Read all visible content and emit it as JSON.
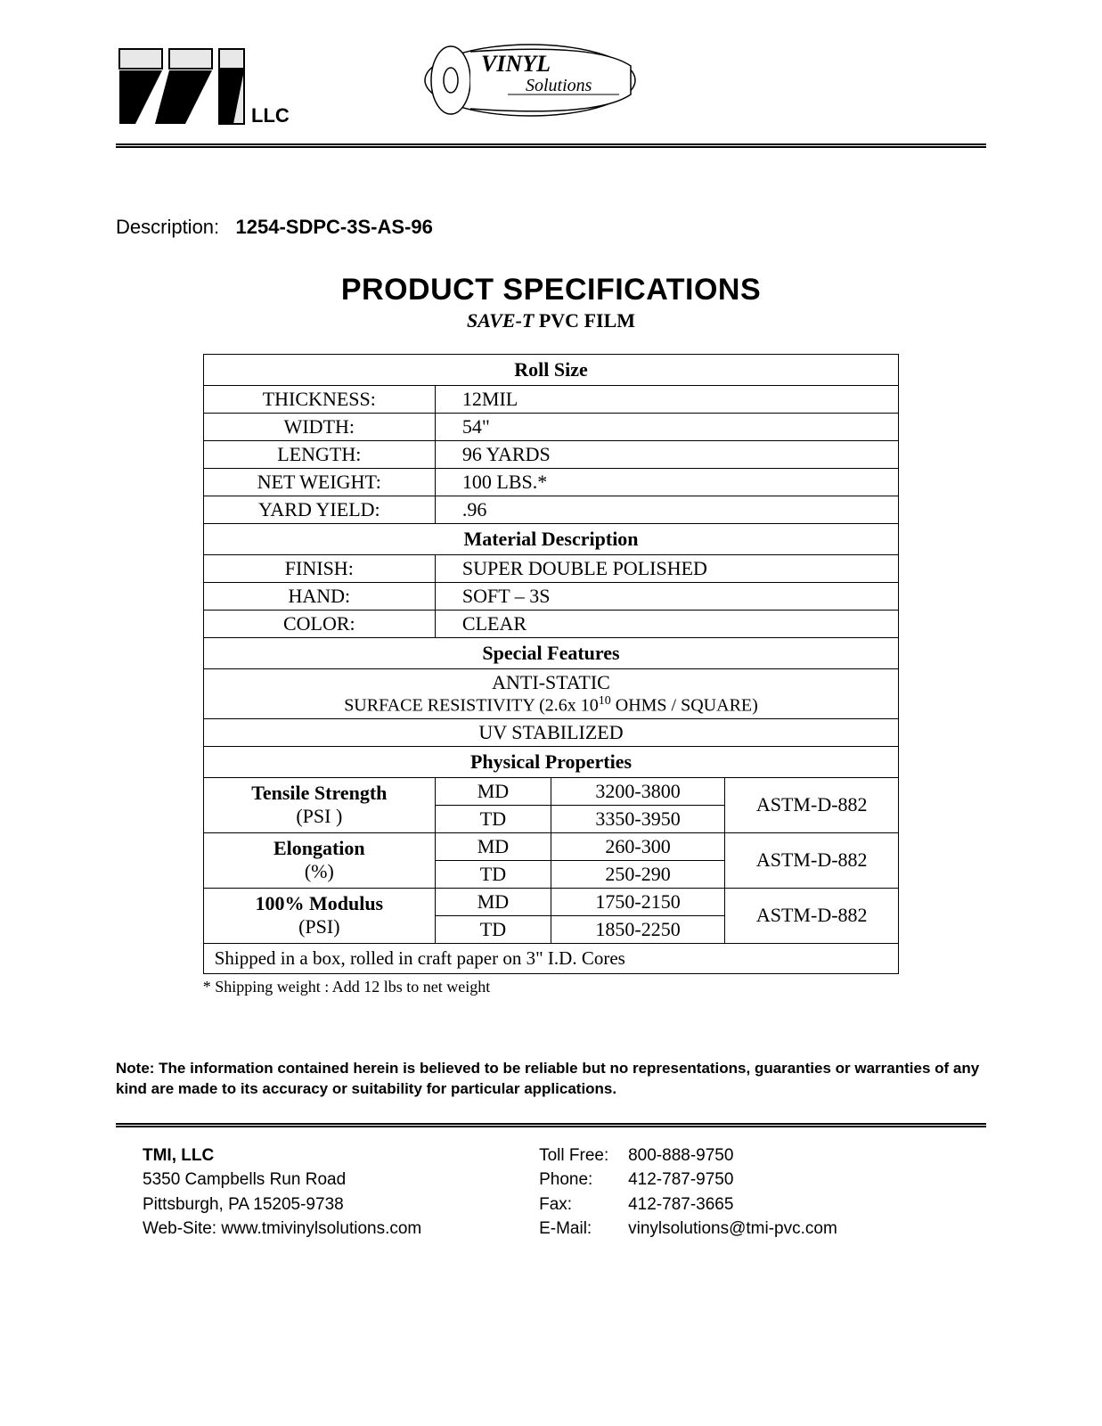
{
  "logo": {
    "company_suffix": "LLC",
    "vinyl_text": "VINYL",
    "vinyl_sub": "Solutions"
  },
  "description": {
    "label": "Description:",
    "value": "1254-SDPC-3S-AS-96"
  },
  "title": "PRODUCT SPECIFICATIONS",
  "subtitle_italic": "SAVE-T",
  "subtitle_rest": " PVC FILM",
  "sections": {
    "roll_size": {
      "header": "Roll Size",
      "rows": [
        {
          "k": "THICKNESS:",
          "v": "12MIL"
        },
        {
          "k": "WIDTH:",
          "v": "54\""
        },
        {
          "k": "LENGTH:",
          "v": "96 YARDS"
        },
        {
          "k": "NET WEIGHT:",
          "v": "100 LBS.*"
        },
        {
          "k": "YARD YIELD:",
          "v": ".96"
        }
      ]
    },
    "material": {
      "header": "Material Description",
      "rows": [
        {
          "k": "FINISH:",
          "v": "SUPER DOUBLE POLISHED"
        },
        {
          "k": "HAND:",
          "v": "SOFT – 3S"
        },
        {
          "k": "COLOR:",
          "v": "CLEAR"
        }
      ]
    },
    "special": {
      "header": "Special Features",
      "antistatic_line1": "ANTI-STATIC",
      "antistatic_line2_pre": "SURFACE RESISTIVITY (2.6x 10",
      "antistatic_line2_sup": "10",
      "antistatic_line2_post": " OHMS / SQUARE)",
      "uv": "UV STABILIZED"
    },
    "physical": {
      "header": "Physical Properties",
      "props": [
        {
          "name": "Tensile Strength",
          "unit": "(PSI )",
          "md": "3200-3800",
          "td": "3350-3950",
          "std": "ASTM-D-882"
        },
        {
          "name": "Elongation",
          "unit": "(%)",
          "md": "260-300",
          "td": "250-290",
          "std": "ASTM-D-882"
        },
        {
          "name": "100% Modulus",
          "unit": "(PSI)",
          "md": "1750-2150",
          "td": "1850-2250",
          "std": "ASTM-D-882"
        }
      ],
      "dir_md": "MD",
      "dir_td": "TD"
    },
    "shipping": "Shipped in a box, rolled in craft paper on 3\" I.D. Cores"
  },
  "asterisk_note": "* Shipping weight :  Add 12 lbs to net weight",
  "disclaimer": "Note:   The information contained herein is believed to be reliable but no representations, guaranties or warranties of any kind are made to its accuracy or suitability for particular applications.",
  "footer": {
    "company": "TMI, LLC",
    "addr1": "5350 Campbells Run Road",
    "addr2": "Pittsburgh, PA  15205-9738",
    "website_label": "Web-Site:",
    "website": "www.tmivinylsolutions.com",
    "contacts": [
      {
        "label": "Toll Free:",
        "value": "800-888-9750"
      },
      {
        "label": "Phone:",
        "value": "412-787-9750"
      },
      {
        "label": "Fax:",
        "value": "412-787-3665"
      },
      {
        "label": "E-Mail:",
        "value": "vinylsolutions@tmi-pvc.com"
      }
    ]
  },
  "colors": {
    "text": "#000000",
    "background": "#ffffff",
    "rule": "#000000",
    "logo_fill": "#e8e8e8"
  }
}
